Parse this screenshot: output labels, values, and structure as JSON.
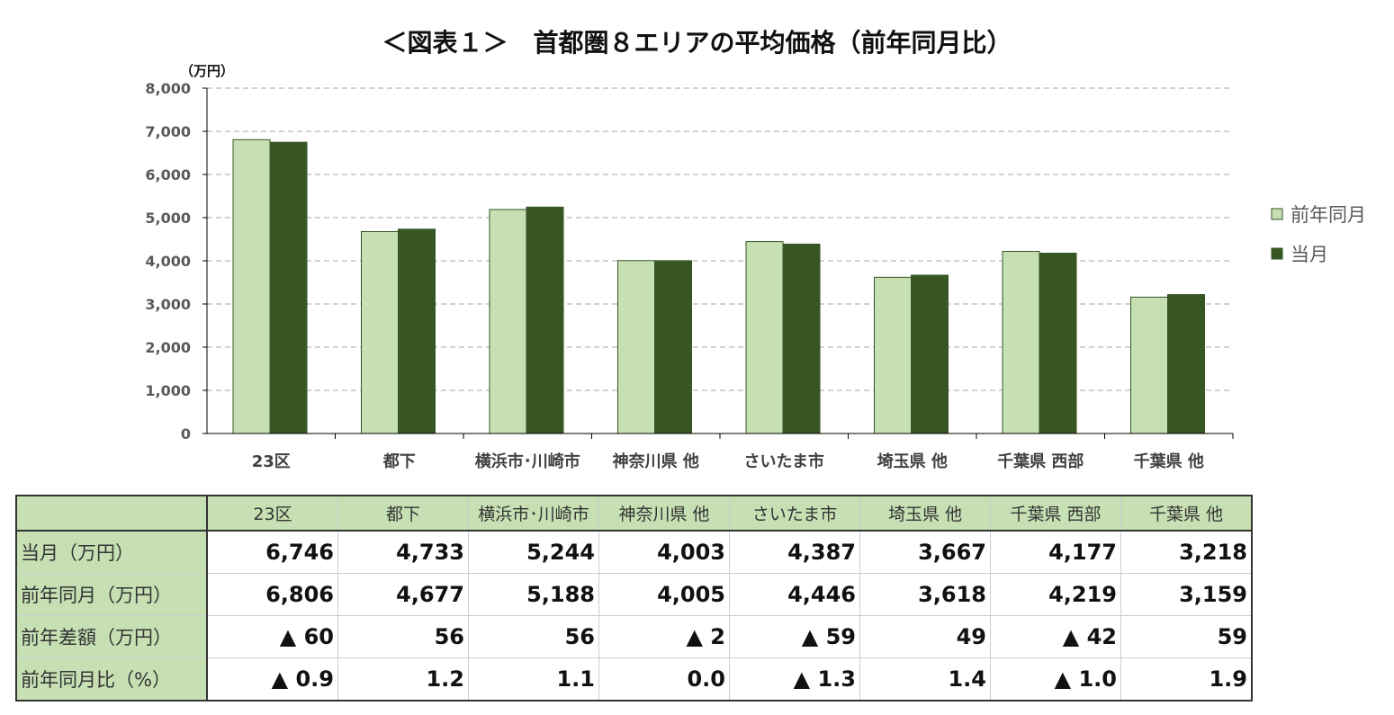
{
  "title": "＜図表１＞　首都圏８エリアの平均価格（前年同月比）",
  "chart_data": {
    "type": "bar",
    "title": "＜図表１＞　首都圏８エリアの平均価格（前年同月比）",
    "ylabel": "（万円）",
    "ylim": [
      0,
      8000
    ],
    "yticks": [
      "0",
      "1,000",
      "2,000",
      "3,000",
      "4,000",
      "5,000",
      "6,000",
      "7,000",
      "8,000"
    ],
    "grid": true,
    "legend_position": "right",
    "categories": [
      "23区",
      "都下",
      "横浜市･川崎市",
      "神奈川県 他",
      "さいたま市",
      "埼玉県 他",
      "千葉県 西部",
      "千葉県 他"
    ],
    "series": [
      {
        "name": "前年同月",
        "color": "#c6e0b4",
        "values": [
          6806,
          4677,
          5188,
          4005,
          4446,
          3618,
          4219,
          3159
        ]
      },
      {
        "name": "当月",
        "color": "#375623",
        "values": [
          6746,
          4733,
          5244,
          4003,
          4387,
          3667,
          4177,
          3218
        ]
      }
    ]
  },
  "table": {
    "headers": [
      "23区",
      "都下",
      "横浜市･川崎市",
      "神奈川県 他",
      "さいたま市",
      "埼玉県 他",
      "千葉県 西部",
      "千葉県 他"
    ],
    "rows": [
      {
        "label": "当月（万円）",
        "cells": [
          "6,746",
          "4,733",
          "5,244",
          "4,003",
          "4,387",
          "3,667",
          "4,177",
          "3,218"
        ]
      },
      {
        "label": "前年同月（万円）",
        "cells": [
          "6,806",
          "4,677",
          "5,188",
          "4,005",
          "4,446",
          "3,618",
          "4,219",
          "3,159"
        ]
      },
      {
        "label": "前年差額（万円）",
        "cells": [
          "▲ 60",
          "56",
          "56",
          "▲ 2",
          "▲ 59",
          "49",
          "▲ 42",
          "59"
        ]
      },
      {
        "label": "前年同月比（%）",
        "cells": [
          "▲ 0.9",
          "1.2",
          "1.1",
          "0.0",
          "▲ 1.3",
          "1.4",
          "▲ 1.0",
          "1.9"
        ]
      }
    ]
  }
}
